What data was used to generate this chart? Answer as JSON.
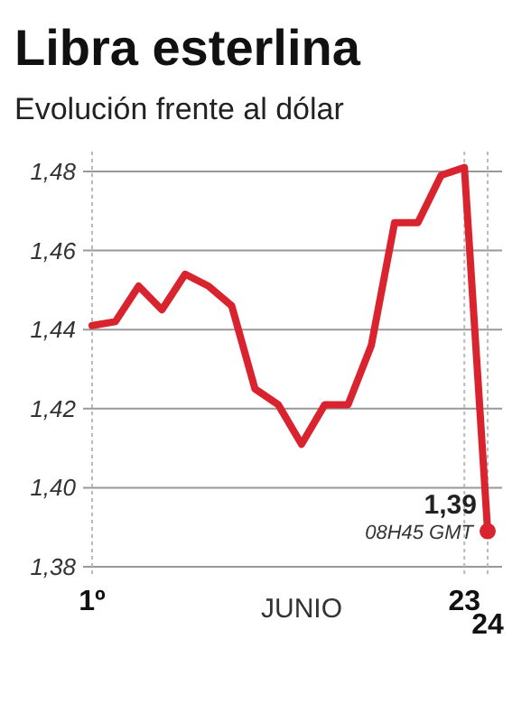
{
  "chart_data": {
    "type": "line",
    "title": "Libra esterlina",
    "subtitle": "Evolución frente al dólar",
    "xlabel": "JUNIO",
    "categories": [
      "1º",
      null,
      null,
      null,
      null,
      null,
      null,
      null,
      null,
      null,
      null,
      null,
      null,
      null,
      null,
      null,
      "23",
      "24"
    ],
    "series": [
      {
        "color": "#d9232e",
        "values": [
          1.441,
          1.442,
          1.451,
          1.445,
          1.454,
          1.451,
          1.446,
          1.425,
          1.421,
          1.411,
          1.421,
          1.421,
          1.436,
          1.467,
          1.467,
          1.479,
          1.481,
          1.389
        ]
      }
    ],
    "value_labels": [
      null,
      null,
      null,
      null,
      null,
      null,
      null,
      null,
      null,
      null,
      null,
      null,
      null,
      null,
      null,
      null,
      null,
      "1,39"
    ],
    "annotations": [
      {
        "text": "08H45 GMT",
        "x": "24",
        "y": 1.389
      }
    ],
    "ylim": [
      1.38,
      1.485
    ],
    "yticks": [
      {
        "value": 1.38,
        "label": "1,38"
      },
      {
        "value": 1.4,
        "label": "1,40"
      },
      {
        "value": 1.42,
        "label": "1,42"
      },
      {
        "value": 1.44,
        "label": "1,44"
      },
      {
        "value": 1.46,
        "label": "1,46"
      },
      {
        "value": 1.48,
        "label": "1,48"
      }
    ],
    "grid": true,
    "marker": "none",
    "line_style": "solid"
  }
}
